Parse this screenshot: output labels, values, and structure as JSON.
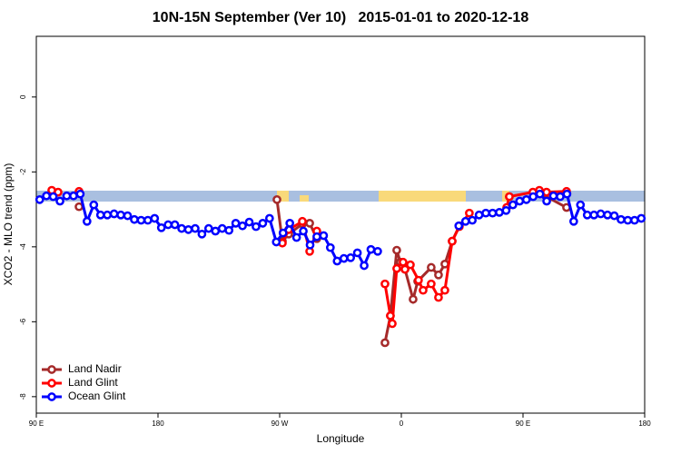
{
  "chart_data": {
    "type": "line",
    "title": "10N-15N September (Ver 10)   2015-01-01 to 2020-12-18",
    "x_label": "Longitude",
    "y_label": "XCO2 - MLO trend (ppm)",
    "xlim": [
      90,
      540
    ],
    "xticks": [
      {
        "value": 90,
        "label": "90 E"
      },
      {
        "value": 180,
        "label": "180"
      },
      {
        "value": 270,
        "label": "90 W"
      },
      {
        "value": 360,
        "label": "0"
      },
      {
        "value": 450,
        "label": "90 E"
      },
      {
        "value": 540,
        "label": "180"
      }
    ],
    "ylim": [
      -8.44,
      1.62
    ],
    "yticks": [
      0,
      -2,
      -4,
      -6,
      -8
    ],
    "legend": "bottom-left",
    "series": [
      {
        "name": "Land Nadir",
        "color": "#a52a2a",
        "x": [
          121.6,
          null,
          268.0,
          272.0,
          276.7,
          286.8,
          292.2,
          297.5,
          null,
          347.9,
          351.9,
          356.6,
          359.3,
          362.7,
          368.7,
          372.1,
          382.1,
          387.5,
          392.2,
          397.6,
          402.9,
          null,
          439.9,
          null,
          462.7,
          482.2
        ],
        "values": [
          -2.93,
          null,
          -2.74,
          -3.85,
          -3.66,
          -3.39,
          -3.37,
          -3.78,
          null,
          -6.56,
          -5.84,
          -4.09,
          -4.41,
          -4.6,
          -5.4,
          -4.92,
          -4.55,
          -4.75,
          -4.46,
          -3.85,
          -3.44,
          null,
          -2.66,
          null,
          -2.57,
          -2.95
        ]
      },
      {
        "name": "Land Glint",
        "color": "#ff0000",
        "x": [
          101.4,
          106.1,
          null,
          121.6,
          null,
          272.0,
          276.7,
          286.8,
          292.2,
          297.5,
          null,
          347.9,
          351.9,
          353.3,
          356.6,
          361.3,
          362.7,
          366.7,
          372.7,
          376.1,
          382.1,
          387.5,
          392.2,
          397.6,
          402.9,
          410.3,
          null,
          437.9,
          439.9,
          457.3,
          462.1,
          467.4,
          482.2
        ],
        "values": [
          -2.49,
          -2.54,
          null,
          -2.52,
          null,
          -3.9,
          -3.54,
          -3.32,
          -4.12,
          -3.58,
          null,
          -4.99,
          -5.84,
          -6.05,
          -4.58,
          -4.41,
          -4.6,
          -4.48,
          -4.89,
          -5.16,
          -4.99,
          -5.35,
          -5.16,
          -3.85,
          -3.46,
          -3.1,
          null,
          -2.95,
          -2.66,
          -2.54,
          -2.49,
          -2.54,
          -2.52
        ]
      },
      {
        "name": "Ocean Glint",
        "color": "#0000ff",
        "x": [
          92.5,
          97.5,
          102.5,
          107.5,
          112.5,
          117.5,
          122.5,
          127.5,
          132.5,
          137.5,
          142.5,
          147.5,
          152.5,
          157.5,
          162.5,
          167.5,
          172.5,
          177.5,
          182.5,
          187.5,
          192.5,
          197.5,
          202.5,
          207.5,
          212.5,
          217.5,
          222.5,
          227.5,
          232.5,
          237.5,
          242.5,
          247.5,
          252.5,
          257.5,
          262.5,
          267.5,
          272.5,
          277.5,
          282.5,
          287.5,
          292.5,
          297.5,
          302.5,
          307.5,
          312.5,
          317.5,
          322.5,
          327.5,
          332.5,
          337.5,
          342.5,
          null,
          402.5,
          407.5,
          412.5,
          417.5,
          422.5,
          427.5,
          432.5,
          437.5,
          442.5,
          447.5,
          452.5,
          457.5,
          462.5,
          467.5,
          472.5,
          477.5,
          482.5,
          487.5,
          492.5,
          497.5,
          502.5,
          507.5,
          512.5,
          517.5,
          522.5,
          527.5,
          532.5,
          537.5
        ],
        "values": [
          -2.74,
          -2.64,
          -2.66,
          -2.78,
          -2.64,
          -2.64,
          -2.59,
          -3.32,
          -2.88,
          -3.15,
          -3.15,
          -3.12,
          -3.15,
          -3.17,
          -3.27,
          -3.29,
          -3.29,
          -3.24,
          -3.49,
          -3.41,
          -3.41,
          -3.51,
          -3.54,
          -3.51,
          -3.66,
          -3.51,
          -3.58,
          -3.51,
          -3.56,
          -3.37,
          -3.44,
          -3.34,
          -3.46,
          -3.37,
          -3.24,
          -3.87,
          -3.63,
          -3.37,
          -3.75,
          -3.58,
          -3.95,
          -3.73,
          -3.7,
          -4.02,
          -4.38,
          -4.31,
          -4.29,
          -4.16,
          -4.5,
          -4.07,
          -4.12,
          null,
          -3.44,
          -3.32,
          -3.29,
          -3.15,
          -3.1,
          -3.1,
          -3.08,
          -3.03,
          -2.88,
          -2.78,
          -2.74,
          -2.66,
          -2.59,
          -2.78,
          -2.64,
          -2.66,
          -2.59,
          -3.32,
          -2.88,
          -3.15,
          -3.15,
          -3.12,
          -3.15,
          -3.17,
          -3.27,
          -3.29,
          -3.29,
          -3.24
        ]
      }
    ]
  }
}
